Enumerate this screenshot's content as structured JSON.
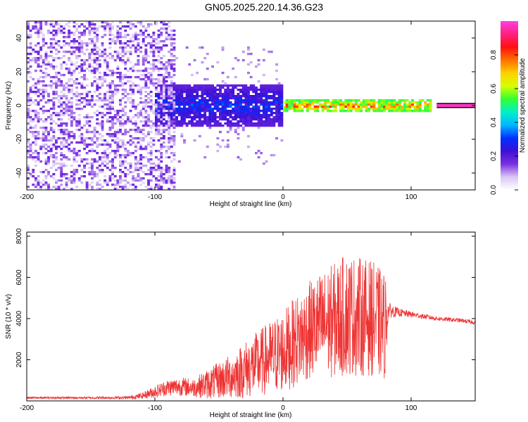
{
  "title": "GN05.2025.220.14.36.G23",
  "chart_data": [
    {
      "type": "heatmap",
      "xlabel": "Height of straight line (km)",
      "ylabel": "Frequency (Hz)",
      "xlim": [
        -200,
        150
      ],
      "ylim": [
        -50,
        50
      ],
      "xticks": [
        "-200",
        "-100",
        "0",
        "100"
      ],
      "xtick_values": [
        -200,
        -100,
        0,
        100
      ],
      "yticks": [
        "-40",
        "-20",
        "0",
        "20",
        "40"
      ],
      "ytick_values": [
        -40,
        -20,
        0,
        20,
        40
      ],
      "colorbar": {
        "label": "Normalized spectral amplitude",
        "range": [
          0,
          1
        ],
        "ticks": [
          "0.0",
          "0.2",
          "0.4",
          "0.6",
          "0.8"
        ],
        "tick_values": [
          0.0,
          0.2,
          0.4,
          0.6,
          0.8
        ],
        "colormap": [
          "#ffffff",
          "#d9c6f5",
          "#7a2fe0",
          "#3d10d6",
          "#0030ff",
          "#00b8ff",
          "#00f0c8",
          "#33ff33",
          "#d6ff00",
          "#ffd000",
          "#ff7000",
          "#ff1010",
          "#ff2080",
          "#ff40e0"
        ]
      },
      "regions": [
        {
          "name": "noise",
          "x": [
            -200,
            -85
          ],
          "freq_spread": [
            -50,
            50
          ],
          "amplitude": [
            0.05,
            0.18
          ]
        },
        {
          "name": "weak signal",
          "x": [
            -100,
            0
          ],
          "freq_spread": [
            -12,
            12
          ],
          "amplitude": [
            0.1,
            0.35
          ]
        },
        {
          "name": "strong signal",
          "x": [
            0,
            115
          ],
          "freq_center": 0,
          "freq_spread": [
            -4,
            4
          ],
          "amplitude": [
            0.3,
            0.9
          ]
        },
        {
          "name": "stable line",
          "x": [
            120,
            150
          ],
          "freq_center": 0,
          "freq_spread": [
            -1,
            1
          ],
          "amplitude": [
            0.9,
            1.0
          ]
        }
      ]
    },
    {
      "type": "line",
      "xlabel": "Height of straight line (km)",
      "ylabel": "SNR (10 * v/v)",
      "xlim": [
        -200,
        150
      ],
      "ylim": [
        0,
        8200
      ],
      "xticks": [
        "-200",
        "-100",
        "0",
        "100"
      ],
      "xtick_values": [
        -200,
        -100,
        0,
        100
      ],
      "yticks": [
        "2000",
        "4000",
        "6000",
        "8000"
      ],
      "ytick_values": [
        2000,
        4000,
        6000,
        8000
      ],
      "color": "#ee3333",
      "series": [
        {
          "x": [
            -200,
            -150,
            -120,
            -110,
            -100,
            -90,
            -80,
            -70,
            -60,
            -50,
            -40,
            -30,
            -20,
            -10,
            0,
            10,
            20,
            30,
            40,
            50,
            60,
            70,
            80,
            82,
            90,
            100,
            110,
            120,
            130,
            140,
            150
          ],
          "y": [
            150,
            150,
            160,
            250,
            450,
            650,
            700,
            650,
            800,
            1000,
            1200,
            1500,
            1800,
            2100,
            2400,
            2900,
            3400,
            3700,
            3900,
            4200,
            4100,
            4000,
            3600,
            4400,
            4300,
            4200,
            4100,
            4000,
            3950,
            3900,
            3800
          ],
          "spread": [
            50,
            60,
            80,
            150,
            300,
            400,
            450,
            450,
            700,
            900,
            1100,
            1400,
            1600,
            1800,
            2000,
            2200,
            2400,
            2600,
            2800,
            3000,
            2900,
            2800,
            2600,
            400,
            200,
            150,
            120,
            110,
            100,
            100,
            100
          ]
        }
      ]
    }
  ]
}
